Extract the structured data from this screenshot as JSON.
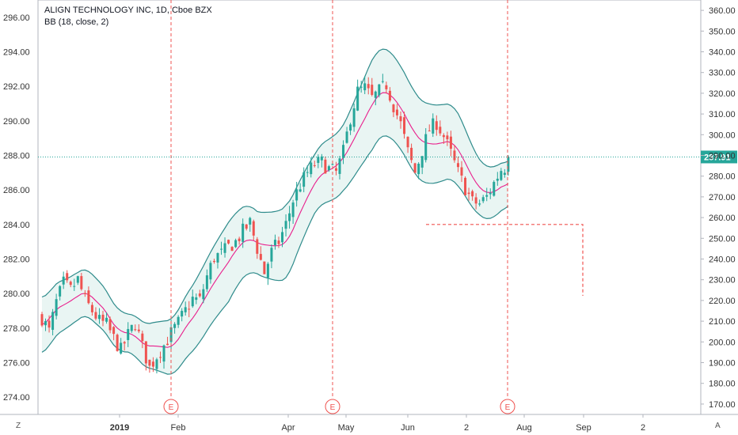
{
  "legend": {
    "symbol_line": "ALIGN TECHNOLOGY INC, 1D, Cboe BZX",
    "indicator_line": "BB (18, close, 2)"
  },
  "corner": {
    "left_label": "Z",
    "right_label": "A"
  },
  "last_price_label": "287.91",
  "colors": {
    "up": "#26a69a",
    "down": "#ef5350",
    "bb_band": "#2e8b8b",
    "bb_basis": "#e91e8c",
    "bb_fill": "#e9f5f3",
    "last_price_line": "#26a69a",
    "earnings_line": "#ef5350",
    "projection_line": "#ef5350"
  },
  "chart_data": {
    "type": "candlestick",
    "left_axis": {
      "ylim": [
        273,
        297
      ],
      "ticks": [
        "274.00",
        "276.00",
        "278.00",
        "280.00",
        "282.00",
        "284.00",
        "286.00",
        "288.00",
        "290.00",
        "292.00",
        "294.00",
        "296.00"
      ]
    },
    "right_axis": {
      "ylim": [
        165,
        365
      ],
      "ticks": [
        "170.00",
        "180.00",
        "190.00",
        "200.00",
        "210.00",
        "220.00",
        "230.00",
        "240.00",
        "250.00",
        "260.00",
        "270.00",
        "280.00",
        "290.00",
        "300.00",
        "310.00",
        "320.00",
        "330.00",
        "340.00",
        "350.00",
        "360.00"
      ]
    },
    "x_ticks": [
      "2019",
      "Feb",
      "Apr",
      "May",
      "Jun",
      "2",
      "Aug",
      "Sep",
      "2"
    ],
    "earnings_markers": [
      "E",
      "E",
      "E"
    ],
    "last_price": 287.91,
    "projection_level": 284.0,
    "close_path": [
      [
        0,
        278.6
      ],
      [
        2,
        277.8
      ],
      [
        4,
        279.5
      ],
      [
        6,
        280.6
      ],
      [
        8,
        280.2
      ],
      [
        10,
        280.8
      ],
      [
        12,
        279.6
      ],
      [
        14,
        279.0
      ],
      [
        16,
        278.4
      ],
      [
        18,
        278.2
      ],
      [
        20,
        277.4
      ],
      [
        22,
        276.7
      ],
      [
        24,
        277.6
      ],
      [
        26,
        278.3
      ],
      [
        28,
        276.9
      ],
      [
        30,
        275.7
      ],
      [
        32,
        276.4
      ],
      [
        34,
        277.0
      ],
      [
        36,
        277.7
      ],
      [
        38,
        278.3
      ],
      [
        40,
        279.0
      ],
      [
        42,
        279.7
      ],
      [
        44,
        279.6
      ],
      [
        46,
        281.0
      ],
      [
        48,
        282.1
      ],
      [
        50,
        282.3
      ],
      [
        52,
        282.7
      ],
      [
        54,
        283.0
      ],
      [
        56,
        283.6
      ],
      [
        58,
        284.1
      ],
      [
        60,
        282.6
      ],
      [
        62,
        281.2
      ],
      [
        64,
        282.4
      ],
      [
        66,
        283.0
      ],
      [
        68,
        284.0
      ],
      [
        70,
        285.4
      ],
      [
        72,
        286.3
      ],
      [
        74,
        287.0
      ],
      [
        76,
        287.5
      ],
      [
        78,
        287.6
      ],
      [
        80,
        287.2
      ],
      [
        82,
        287.0
      ],
      [
        84,
        288.2
      ],
      [
        86,
        290.2
      ],
      [
        88,
        291.7
      ],
      [
        90,
        291.9
      ],
      [
        92,
        291.3
      ],
      [
        94,
        291.7
      ],
      [
        96,
        292.1
      ],
      [
        98,
        290.9
      ],
      [
        100,
        289.8
      ],
      [
        102,
        288.2
      ],
      [
        104,
        287.0
      ],
      [
        106,
        288.3
      ],
      [
        108,
        289.5
      ],
      [
        110,
        289.9
      ],
      [
        112,
        289.1
      ],
      [
        114,
        288.1
      ],
      [
        116,
        287.0
      ],
      [
        118,
        286.1
      ],
      [
        120,
        285.3
      ],
      [
        122,
        285.2
      ],
      [
        124,
        285.6
      ],
      [
        126,
        286.4
      ],
      [
        128,
        287.2
      ],
      [
        130,
        287.4
      ]
    ],
    "vol_path": [
      [
        0,
        1.6
      ],
      [
        8,
        1.4
      ],
      [
        16,
        1.3
      ],
      [
        24,
        1.1
      ],
      [
        30,
        1.3
      ],
      [
        36,
        1.6
      ],
      [
        44,
        2.0
      ],
      [
        52,
        2.3
      ],
      [
        60,
        1.8
      ],
      [
        68,
        2.1
      ],
      [
        76,
        1.7
      ],
      [
        84,
        1.9
      ],
      [
        92,
        2.6
      ],
      [
        100,
        2.4
      ],
      [
        108,
        2.3
      ],
      [
        116,
        2.1
      ],
      [
        122,
        1.6
      ],
      [
        130,
        1.3
      ]
    ],
    "noise_seed": 7,
    "n_days": 131
  }
}
